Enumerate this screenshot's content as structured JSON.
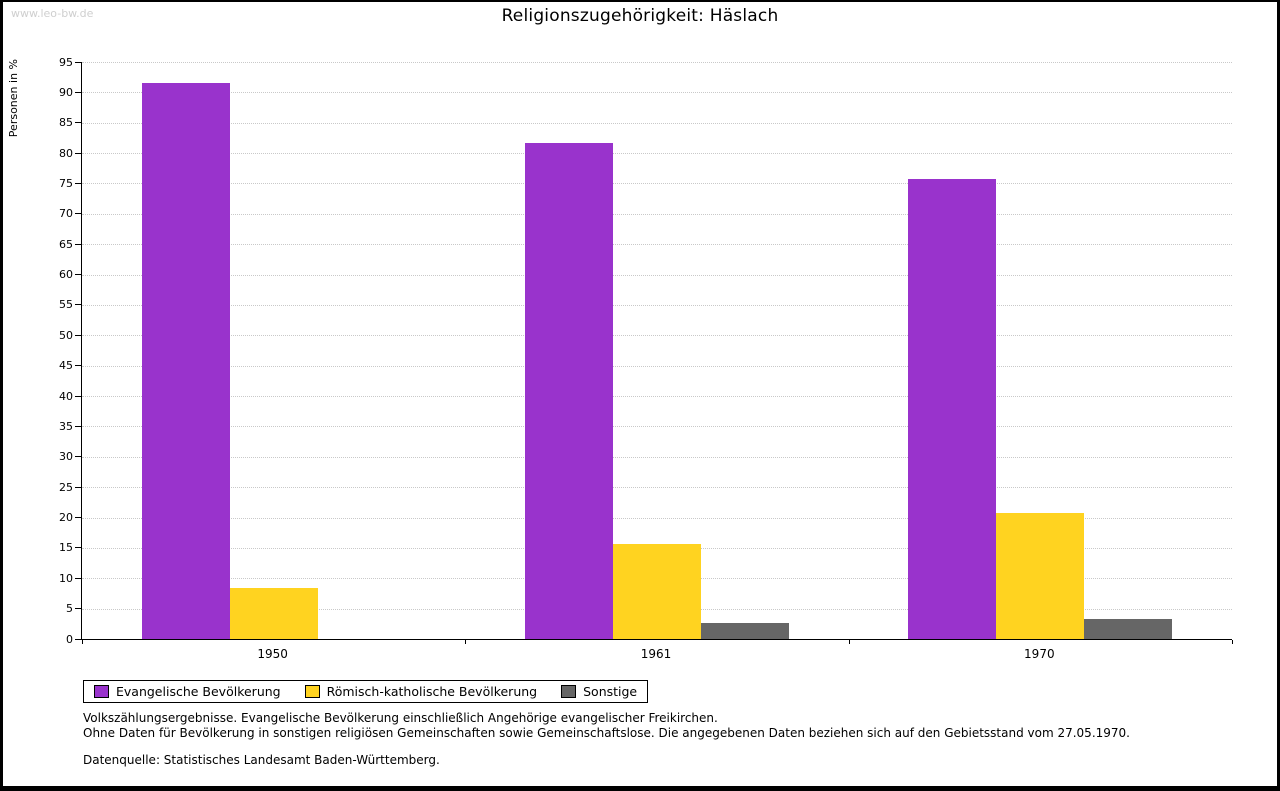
{
  "watermark": "www.leo-bw.de",
  "title": "Religionszugehörigkeit: Häslach",
  "chart_data": {
    "type": "bar",
    "title": "Religionszugehörigkeit: Häslach",
    "xlabel": "",
    "ylabel": "Personen in %",
    "ylim": [
      0,
      95
    ],
    "ytick_step": 5,
    "grid": true,
    "legend_position": "bottom",
    "categories": [
      "1950",
      "1961",
      "1970"
    ],
    "series": [
      {
        "name": "Evangelische Bevölkerung",
        "color": "#9933cc",
        "values": [
          91.5,
          81.6,
          75.8
        ]
      },
      {
        "name": "Römisch-katholische Bevölkerung",
        "color": "#ffd320",
        "values": [
          8.4,
          15.6,
          20.8
        ]
      },
      {
        "name": "Sonstige",
        "color": "#666666",
        "values": [
          0,
          2.6,
          3.3
        ]
      }
    ]
  },
  "footnotes": [
    "Volkszählungsergebnisse. Evangelische Bevölkerung einschließlich Angehörige evangelischer Freikirchen.",
    "Ohne Daten für Bevölkerung in sonstigen religiösen Gemeinschaften sowie Gemeinschaftslose. Die angegebenen Daten beziehen sich auf den Gebietsstand vom 27.05.1970."
  ],
  "source": "Datenquelle: Statistisches Landesamt Baden-Württemberg."
}
